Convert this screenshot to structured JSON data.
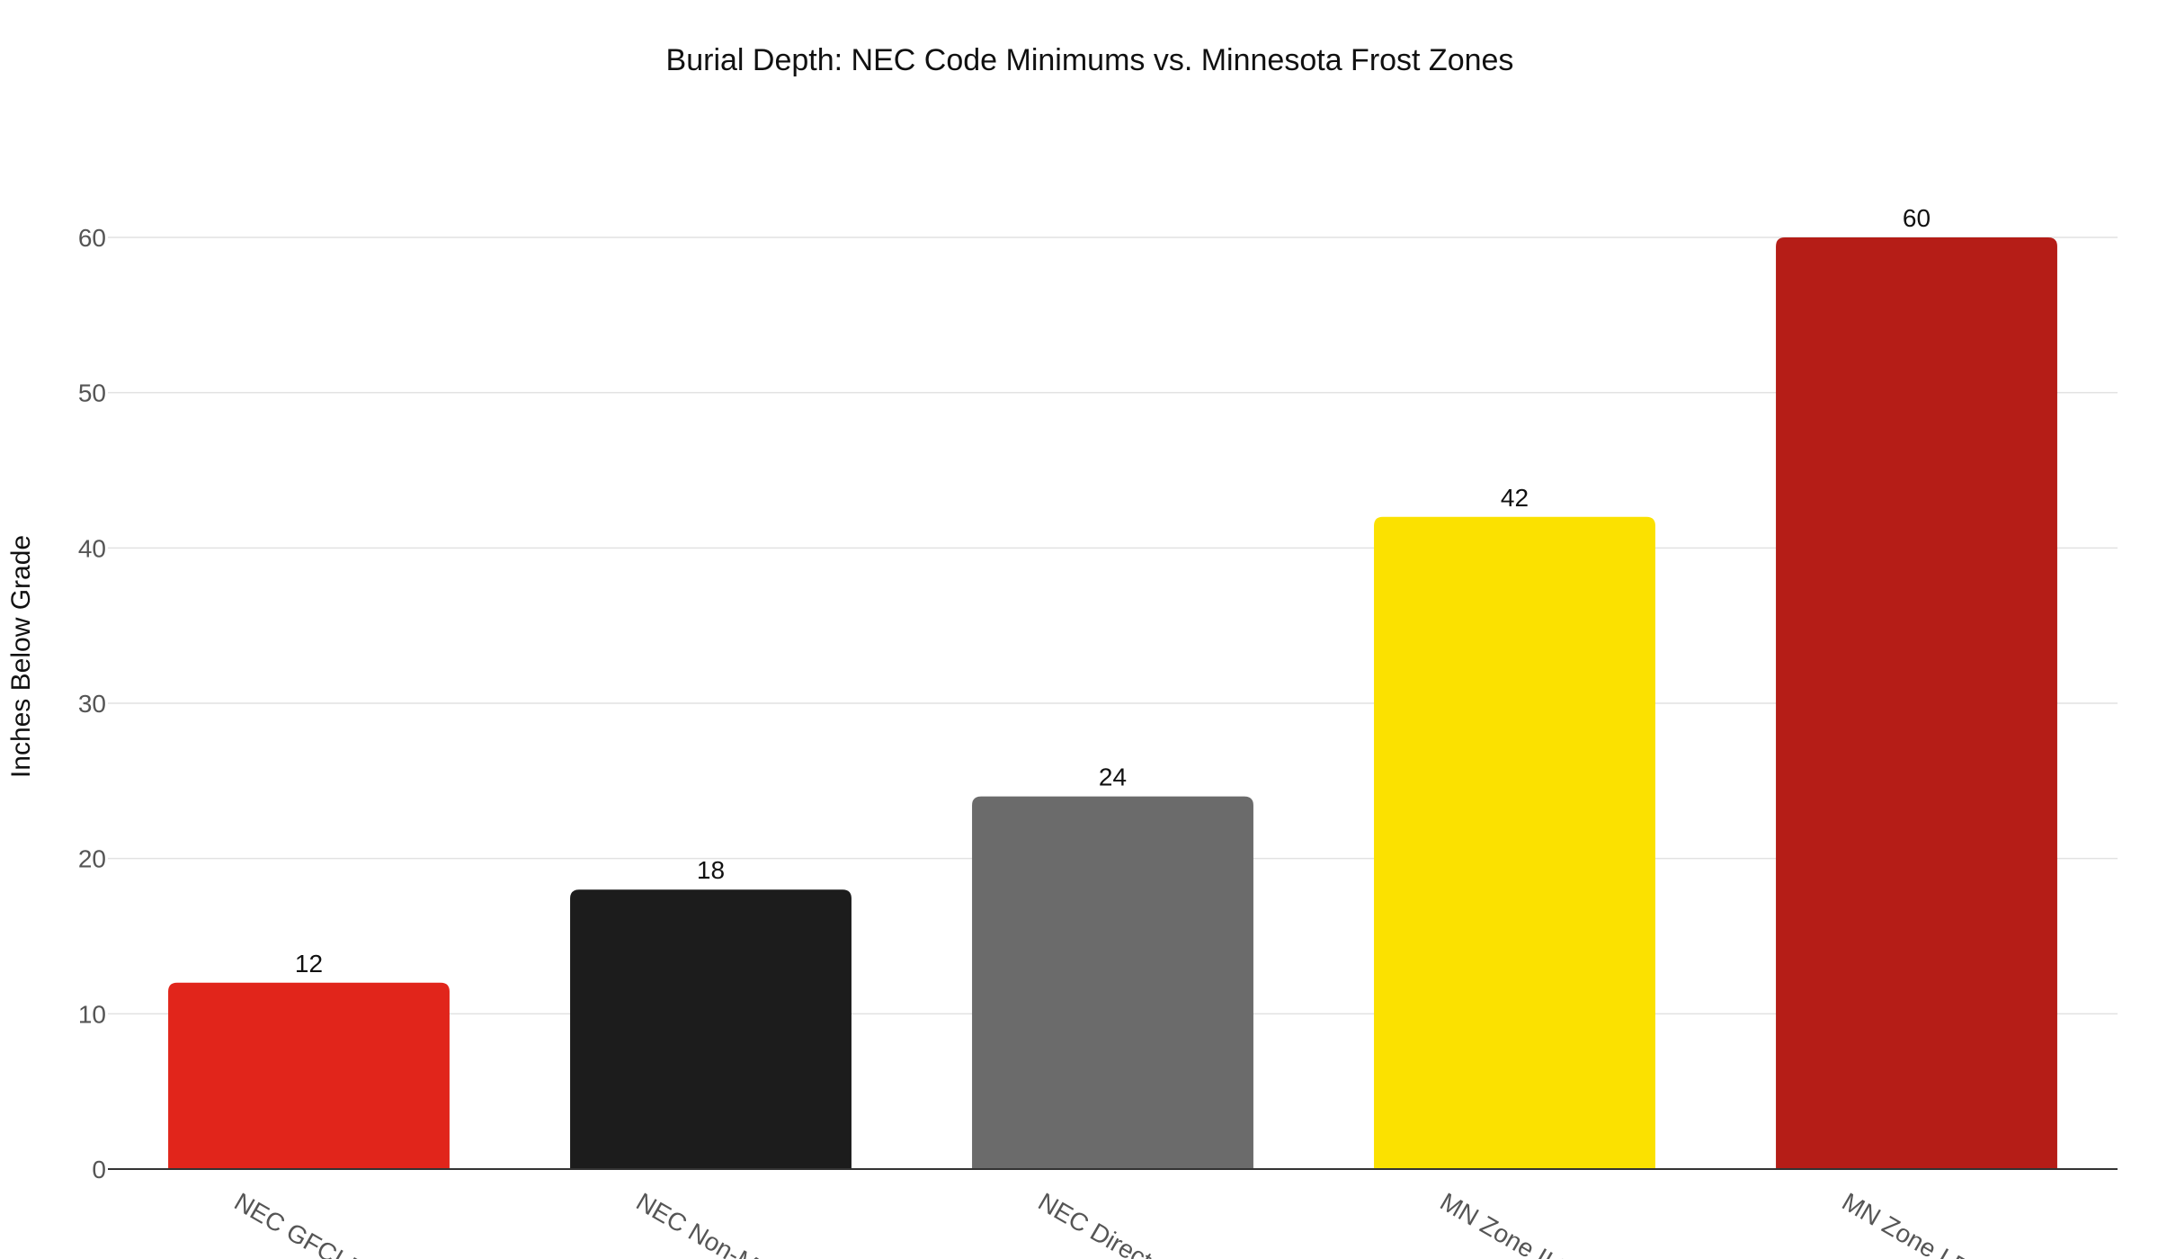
{
  "chart_data": {
    "type": "bar",
    "title": "Burial Depth: NEC Code Minimums vs. Minnesota Frost Zones",
    "xlabel": "",
    "ylabel": "Inches Below Grade",
    "ylim": [
      0,
      60
    ],
    "yticks": [
      0,
      10,
      20,
      30,
      40,
      50,
      60
    ],
    "grid": true,
    "legend": "none",
    "categories": [
      "NEC GFCI-Prot",
      "NEC Non-Metal",
      "NEC Direct-Buri",
      "MN Zone II Fro",
      "MN Zone I Fros"
    ],
    "values": [
      12,
      18,
      24,
      42,
      60
    ],
    "colors": [
      "#e1251b",
      "#1c1c1c",
      "#6b6b6b",
      "#fbe100",
      "#b51d17"
    ]
  }
}
